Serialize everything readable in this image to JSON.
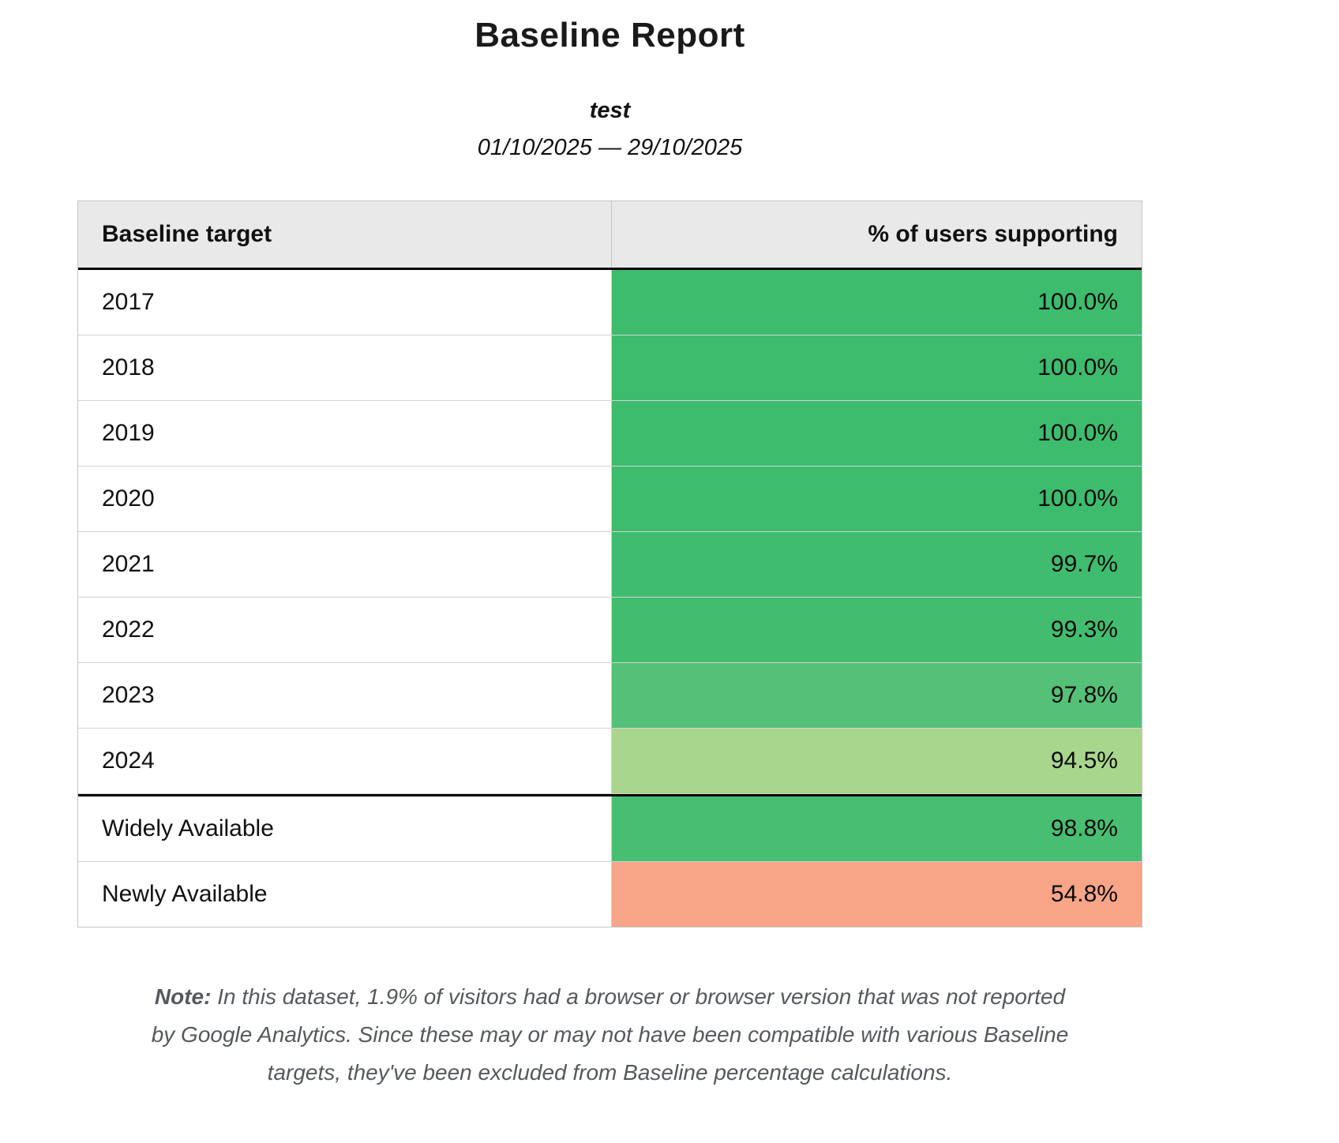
{
  "report": {
    "title": "Baseline Report",
    "subtitle": "test",
    "date_range": "01/10/2025 — 29/10/2025"
  },
  "chart_data": {
    "type": "table",
    "title": "Baseline Report",
    "subtitle": "test",
    "date_range": "01/10/2025 — 29/10/2025",
    "columns": [
      "Baseline target",
      "% of users supporting"
    ],
    "rows": [
      {
        "target": "2017",
        "percent": "100.0%",
        "value": 100.0,
        "color": "#3dbc6e"
      },
      {
        "target": "2018",
        "percent": "100.0%",
        "value": 100.0,
        "color": "#3dbc6e"
      },
      {
        "target": "2019",
        "percent": "100.0%",
        "value": 100.0,
        "color": "#3dbc6e"
      },
      {
        "target": "2020",
        "percent": "100.0%",
        "value": 100.0,
        "color": "#3dbc6e"
      },
      {
        "target": "2021",
        "percent": "99.7%",
        "value": 99.7,
        "color": "#3fbc6f"
      },
      {
        "target": "2022",
        "percent": "99.3%",
        "value": 99.3,
        "color": "#42bd70"
      },
      {
        "target": "2023",
        "percent": "97.8%",
        "value": 97.8,
        "color": "#55c077"
      },
      {
        "target": "2024",
        "percent": "94.5%",
        "value": 94.5,
        "color": "#a8d68c"
      },
      {
        "target": "Widely Available",
        "percent": "98.8%",
        "value": 98.8,
        "color": "#47be72"
      },
      {
        "target": "Newly Available",
        "percent": "54.8%",
        "value": 54.8,
        "color": "#f7a487"
      }
    ],
    "header_background": "#e9e9ea",
    "legend": "none",
    "grid": "table-borders"
  },
  "note": {
    "label": "Note:",
    "text": "In this dataset, 1.9% of visitors had a browser or browser version that was not reported by Google Analytics. Since these may or may not have been compatible with various Baseline targets, they've been excluded from Baseline percentage calculations."
  }
}
